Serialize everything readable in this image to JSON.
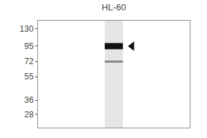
{
  "chart_data": {
    "type": "blot",
    "title": "HL-60",
    "categories": [
      null
    ],
    "series": [
      {
        "values": [
          95
        ],
        "color": "#111111",
        "marker": "triangle-left"
      },
      {
        "values": [
          72
        ],
        "color": "#444444"
      }
    ],
    "log": "y",
    "ylim": [
      22,
      150
    ],
    "yticks": [
      130,
      95,
      72,
      55,
      36,
      28
    ],
    "tick_labels": "y"
  }
}
